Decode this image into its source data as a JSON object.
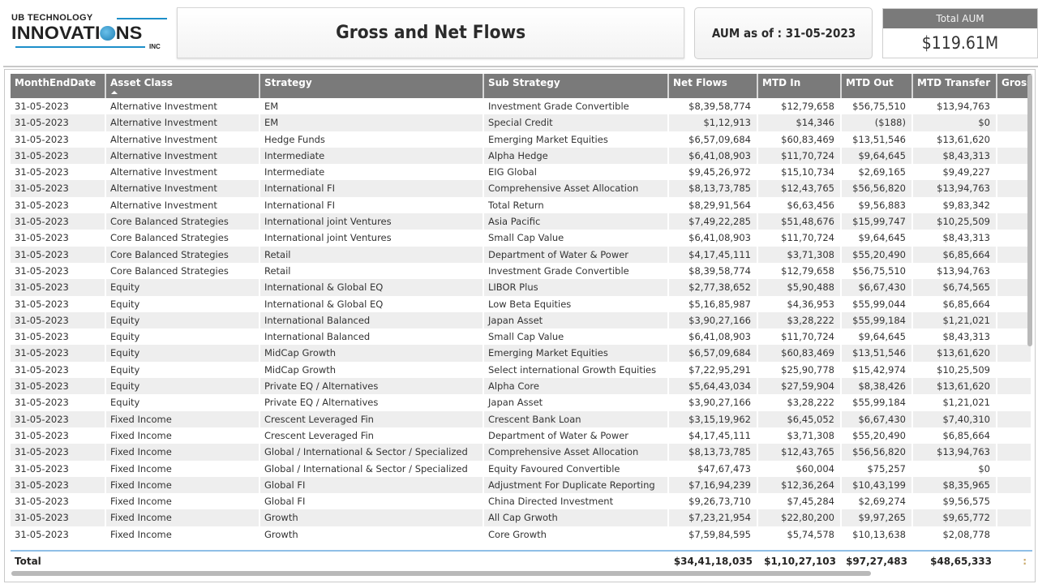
{
  "logo": {
    "line1": "UB TECHNOLOGY",
    "line2a": "INNOVATI",
    "line2b": "NS",
    "line3": "INC"
  },
  "header": {
    "title": "Gross and Net Flows",
    "aum_as_of": "AUM as of : 31-05-2023",
    "total_aum_label": "Total AUM",
    "total_aum_value": "$119.61M"
  },
  "table": {
    "columns": [
      "MonthEndDate",
      "Asset Class",
      "Strategy",
      "Sub Strategy",
      "Net Flows",
      "MTD In",
      "MTD Out",
      "MTD Transfer",
      "Gross"
    ],
    "sorted_column": "Asset Class",
    "sort_direction": "ascending",
    "rows": [
      [
        "31-05-2023",
        "Alternative Investment",
        "EM",
        "Investment Grade Convertible",
        "$8,39,58,774",
        "$12,79,658",
        "$56,75,510",
        "$13,94,763"
      ],
      [
        "31-05-2023",
        "Alternative Investment",
        "EM",
        "Special Credit",
        "$1,12,913",
        "$14,346",
        "($188)",
        "$0"
      ],
      [
        "31-05-2023",
        "Alternative Investment",
        "Hedge Funds",
        "Emerging Market Equities",
        "$6,57,09,684",
        "$60,83,469",
        "$13,51,546",
        "$13,61,620"
      ],
      [
        "31-05-2023",
        "Alternative Investment",
        "Intermediate",
        "Alpha Hedge",
        "$6,41,08,903",
        "$11,70,724",
        "$9,64,645",
        "$8,43,313"
      ],
      [
        "31-05-2023",
        "Alternative Investment",
        "Intermediate",
        "EIG Global",
        "$9,45,26,972",
        "$15,10,734",
        "$2,69,165",
        "$9,49,227"
      ],
      [
        "31-05-2023",
        "Alternative Investment",
        "International FI",
        "Comprehensive Asset Allocation",
        "$8,13,73,785",
        "$12,43,765",
        "$56,56,820",
        "$13,94,763"
      ],
      [
        "31-05-2023",
        "Alternative Investment",
        "International FI",
        "Total Return",
        "$8,29,91,564",
        "$6,63,456",
        "$9,56,883",
        "$9,83,342"
      ],
      [
        "31-05-2023",
        "Core Balanced Strategies",
        "International joint Ventures",
        "Asia Pacific",
        "$7,49,22,285",
        "$51,48,676",
        "$15,99,747",
        "$10,25,509"
      ],
      [
        "31-05-2023",
        "Core Balanced Strategies",
        "International joint Ventures",
        "Small Cap Value",
        "$6,41,08,903",
        "$11,70,724",
        "$9,64,645",
        "$8,43,313"
      ],
      [
        "31-05-2023",
        "Core Balanced Strategies",
        "Retail",
        "Department of Water & Power",
        "$4,17,45,111",
        "$3,71,308",
        "$55,20,490",
        "$6,85,664"
      ],
      [
        "31-05-2023",
        "Core Balanced Strategies",
        "Retail",
        "Investment Grade Convertible",
        "$8,39,58,774",
        "$12,79,658",
        "$56,75,510",
        "$13,94,763"
      ],
      [
        "31-05-2023",
        "Equity",
        "International & Global EQ",
        "LIBOR Plus",
        "$2,77,38,652",
        "$5,90,488",
        "$6,67,430",
        "$6,74,565"
      ],
      [
        "31-05-2023",
        "Equity",
        "International & Global EQ",
        "Low Beta Equities",
        "$5,16,85,987",
        "$4,36,953",
        "$55,99,044",
        "$6,85,664"
      ],
      [
        "31-05-2023",
        "Equity",
        "International Balanced",
        "Japan Asset",
        "$3,90,27,166",
        "$3,28,222",
        "$55,99,184",
        "$1,21,021"
      ],
      [
        "31-05-2023",
        "Equity",
        "International Balanced",
        "Small Cap Value",
        "$6,41,08,903",
        "$11,70,724",
        "$9,64,645",
        "$8,43,313"
      ],
      [
        "31-05-2023",
        "Equity",
        "MidCap Growth",
        "Emerging Market Equities",
        "$6,57,09,684",
        "$60,83,469",
        "$13,51,546",
        "$13,61,620"
      ],
      [
        "31-05-2023",
        "Equity",
        "MidCap Growth",
        "Select international Growth Equities",
        "$7,22,95,291",
        "$25,90,778",
        "$15,42,974",
        "$10,25,509"
      ],
      [
        "31-05-2023",
        "Equity",
        "Private EQ / Alternatives",
        "Alpha Core",
        "$5,64,43,034",
        "$27,59,904",
        "$8,38,426",
        "$13,61,620"
      ],
      [
        "31-05-2023",
        "Equity",
        "Private EQ / Alternatives",
        "Japan Asset",
        "$3,90,27,166",
        "$3,28,222",
        "$55,99,184",
        "$1,21,021"
      ],
      [
        "31-05-2023",
        "Fixed Income",
        "Crescent Leveraged Fin",
        "Crescent Bank Loan",
        "$3,15,19,962",
        "$6,45,052",
        "$6,67,430",
        "$7,40,310"
      ],
      [
        "31-05-2023",
        "Fixed Income",
        "Crescent Leveraged Fin",
        "Department of Water & Power",
        "$4,17,45,111",
        "$3,71,308",
        "$55,20,490",
        "$6,85,664"
      ],
      [
        "31-05-2023",
        "Fixed Income",
        "Global / International & Sector / Specialized",
        "Comprehensive Asset Allocation",
        "$8,13,73,785",
        "$12,43,765",
        "$56,56,820",
        "$13,94,763"
      ],
      [
        "31-05-2023",
        "Fixed Income",
        "Global / International & Sector / Specialized",
        "Equity Favoured Convertible",
        "$47,67,473",
        "$60,004",
        "$75,257",
        "$0"
      ],
      [
        "31-05-2023",
        "Fixed Income",
        "Global FI",
        "Adjustment For Duplicate Reporting",
        "$7,16,94,239",
        "$12,36,264",
        "$10,43,199",
        "$8,35,965"
      ],
      [
        "31-05-2023",
        "Fixed Income",
        "Global FI",
        "China Directed Investment",
        "$9,26,73,710",
        "$7,45,284",
        "$2,69,274",
        "$9,56,575"
      ],
      [
        "31-05-2023",
        "Fixed Income",
        "Growth",
        "All Cap Grwoth",
        "$7,23,21,954",
        "$22,80,200",
        "$9,97,265",
        "$9,65,772"
      ],
      [
        "31-05-2023",
        "Fixed Income",
        "Growth",
        "Core Growth",
        "$7,59,84,595",
        "$5,74,578",
        "$10,13,638",
        "$2,08,778"
      ]
    ],
    "total": {
      "label": "Total",
      "net_flows": "$34,41,18,035",
      "mtd_in": "$1,10,27,103",
      "mtd_out": "$97,27,483",
      "mtd_transfer": "$48,65,333",
      "gross_truncated": ":"
    }
  },
  "colors": {
    "header_bg": "#7a7a7a",
    "row_alt": "#eeeeee",
    "total_border": "#8fbfe6",
    "logo_blue": "#1d8fc9"
  }
}
